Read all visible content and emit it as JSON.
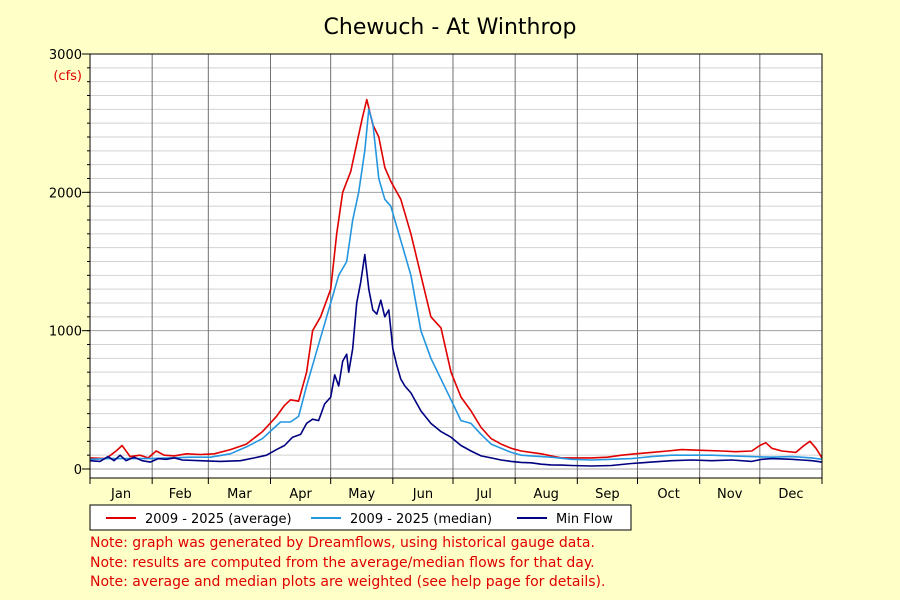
{
  "chart_data": {
    "type": "line",
    "title": "Chewuch - At Winthrop",
    "ylabel": "(cfs)",
    "xlabel": "",
    "ylim": [
      0,
      3000
    ],
    "xlim": [
      0,
      365
    ],
    "yticks": [
      0,
      1000,
      2000,
      3000
    ],
    "y_minor_step": 100,
    "months": [
      "Jan",
      "Feb",
      "Mar",
      "Apr",
      "May",
      "Jun",
      "Jul",
      "Aug",
      "Sep",
      "Oct",
      "Nov",
      "Dec"
    ],
    "month_starts": [
      0,
      31,
      59,
      90,
      120,
      151,
      181,
      212,
      243,
      273,
      304,
      334,
      365
    ],
    "grid": true,
    "legend_position": "bottom",
    "series": [
      {
        "name": "2009 - 2025 (average)",
        "color": "#e00000",
        "points": [
          [
            0,
            80
          ],
          [
            8,
            75
          ],
          [
            13,
            130
          ],
          [
            16,
            170
          ],
          [
            20,
            90
          ],
          [
            25,
            100
          ],
          [
            29,
            80
          ],
          [
            33,
            130
          ],
          [
            37,
            100
          ],
          [
            42,
            95
          ],
          [
            48,
            110
          ],
          [
            55,
            105
          ],
          [
            62,
            110
          ],
          [
            70,
            140
          ],
          [
            78,
            180
          ],
          [
            86,
            270
          ],
          [
            93,
            380
          ],
          [
            97,
            460
          ],
          [
            100,
            500
          ],
          [
            104,
            490
          ],
          [
            108,
            700
          ],
          [
            111,
            1000
          ],
          [
            115,
            1100
          ],
          [
            120,
            1300
          ],
          [
            123,
            1700
          ],
          [
            126,
            2000
          ],
          [
            130,
            2150
          ],
          [
            133,
            2350
          ],
          [
            136,
            2550
          ],
          [
            138,
            2670
          ],
          [
            141,
            2490
          ],
          [
            144,
            2400
          ],
          [
            147,
            2180
          ],
          [
            150,
            2080
          ],
          [
            155,
            1950
          ],
          [
            160,
            1700
          ],
          [
            165,
            1400
          ],
          [
            170,
            1100
          ],
          [
            175,
            1020
          ],
          [
            180,
            700
          ],
          [
            185,
            520
          ],
          [
            190,
            420
          ],
          [
            195,
            300
          ],
          [
            200,
            220
          ],
          [
            205,
            180
          ],
          [
            210,
            150
          ],
          [
            215,
            130
          ],
          [
            220,
            120
          ],
          [
            225,
            110
          ],
          [
            230,
            95
          ],
          [
            235,
            80
          ],
          [
            240,
            80
          ],
          [
            250,
            80
          ],
          [
            258,
            85
          ],
          [
            265,
            100
          ],
          [
            272,
            110
          ],
          [
            280,
            120
          ],
          [
            288,
            130
          ],
          [
            295,
            140
          ],
          [
            305,
            135
          ],
          [
            315,
            130
          ],
          [
            322,
            125
          ],
          [
            330,
            130
          ],
          [
            334,
            170
          ],
          [
            337,
            190
          ],
          [
            340,
            150
          ],
          [
            345,
            130
          ],
          [
            352,
            120
          ],
          [
            356,
            170
          ],
          [
            359,
            200
          ],
          [
            362,
            150
          ],
          [
            365,
            80
          ]
        ]
      },
      {
        "name": "2009 - 2025 (median)",
        "color": "#2596e0",
        "points": [
          [
            0,
            70
          ],
          [
            10,
            75
          ],
          [
            20,
            75
          ],
          [
            30,
            75
          ],
          [
            40,
            80
          ],
          [
            50,
            85
          ],
          [
            60,
            85
          ],
          [
            70,
            110
          ],
          [
            78,
            160
          ],
          [
            86,
            220
          ],
          [
            92,
            300
          ],
          [
            95,
            340
          ],
          [
            100,
            340
          ],
          [
            104,
            380
          ],
          [
            108,
            600
          ],
          [
            112,
            800
          ],
          [
            116,
            1000
          ],
          [
            120,
            1200
          ],
          [
            124,
            1400
          ],
          [
            128,
            1500
          ],
          [
            131,
            1800
          ],
          [
            134,
            2000
          ],
          [
            137,
            2300
          ],
          [
            139,
            2600
          ],
          [
            141,
            2500
          ],
          [
            144,
            2100
          ],
          [
            147,
            1950
          ],
          [
            150,
            1900
          ],
          [
            153,
            1750
          ],
          [
            156,
            1600
          ],
          [
            160,
            1400
          ],
          [
            165,
            1000
          ],
          [
            170,
            800
          ],
          [
            175,
            650
          ],
          [
            180,
            500
          ],
          [
            185,
            350
          ],
          [
            190,
            330
          ],
          [
            195,
            250
          ],
          [
            200,
            180
          ],
          [
            205,
            150
          ],
          [
            210,
            120
          ],
          [
            215,
            100
          ],
          [
            220,
            95
          ],
          [
            230,
            85
          ],
          [
            240,
            70
          ],
          [
            250,
            65
          ],
          [
            260,
            70
          ],
          [
            270,
            75
          ],
          [
            280,
            90
          ],
          [
            290,
            100
          ],
          [
            300,
            100
          ],
          [
            310,
            100
          ],
          [
            320,
            95
          ],
          [
            330,
            90
          ],
          [
            340,
            85
          ],
          [
            350,
            90
          ],
          [
            360,
            80
          ],
          [
            365,
            70
          ]
        ]
      },
      {
        "name": "Min Flow",
        "color": "#000080",
        "points": [
          [
            0,
            60
          ],
          [
            5,
            55
          ],
          [
            9,
            90
          ],
          [
            12,
            60
          ],
          [
            15,
            100
          ],
          [
            18,
            60
          ],
          [
            22,
            85
          ],
          [
            26,
            60
          ],
          [
            30,
            50
          ],
          [
            34,
            75
          ],
          [
            38,
            70
          ],
          [
            42,
            80
          ],
          [
            46,
            65
          ],
          [
            55,
            60
          ],
          [
            65,
            55
          ],
          [
            75,
            60
          ],
          [
            82,
            80
          ],
          [
            88,
            100
          ],
          [
            93,
            140
          ],
          [
            97,
            170
          ],
          [
            101,
            230
          ],
          [
            105,
            250
          ],
          [
            108,
            330
          ],
          [
            111,
            360
          ],
          [
            114,
            350
          ],
          [
            117,
            470
          ],
          [
            120,
            520
          ],
          [
            122,
            680
          ],
          [
            124,
            600
          ],
          [
            126,
            780
          ],
          [
            128,
            830
          ],
          [
            129,
            700
          ],
          [
            131,
            870
          ],
          [
            133,
            1200
          ],
          [
            135,
            1350
          ],
          [
            137,
            1550
          ],
          [
            139,
            1300
          ],
          [
            141,
            1150
          ],
          [
            143,
            1120
          ],
          [
            145,
            1220
          ],
          [
            147,
            1100
          ],
          [
            149,
            1150
          ],
          [
            151,
            870
          ],
          [
            153,
            750
          ],
          [
            155,
            650
          ],
          [
            157,
            600
          ],
          [
            160,
            550
          ],
          [
            165,
            420
          ],
          [
            170,
            330
          ],
          [
            175,
            270
          ],
          [
            180,
            230
          ],
          [
            185,
            170
          ],
          [
            190,
            130
          ],
          [
            195,
            95
          ],
          [
            200,
            80
          ],
          [
            205,
            65
          ],
          [
            210,
            55
          ],
          [
            215,
            48
          ],
          [
            220,
            45
          ],
          [
            225,
            35
          ],
          [
            230,
            30
          ],
          [
            235,
            28
          ],
          [
            240,
            25
          ],
          [
            250,
            22
          ],
          [
            260,
            25
          ],
          [
            270,
            40
          ],
          [
            275,
            45
          ],
          [
            280,
            50
          ],
          [
            290,
            60
          ],
          [
            300,
            65
          ],
          [
            310,
            60
          ],
          [
            320,
            65
          ],
          [
            330,
            55
          ],
          [
            335,
            70
          ],
          [
            340,
            75
          ],
          [
            350,
            70
          ],
          [
            355,
            65
          ],
          [
            360,
            60
          ],
          [
            365,
            50
          ]
        ]
      }
    ]
  },
  "notes": [
    "Note: graph was generated by Dreamflows, using historical gauge data.",
    "Note: results are computed from the average/median flows for that day.",
    "Note: average and median plots are weighted (see help page for details)."
  ]
}
